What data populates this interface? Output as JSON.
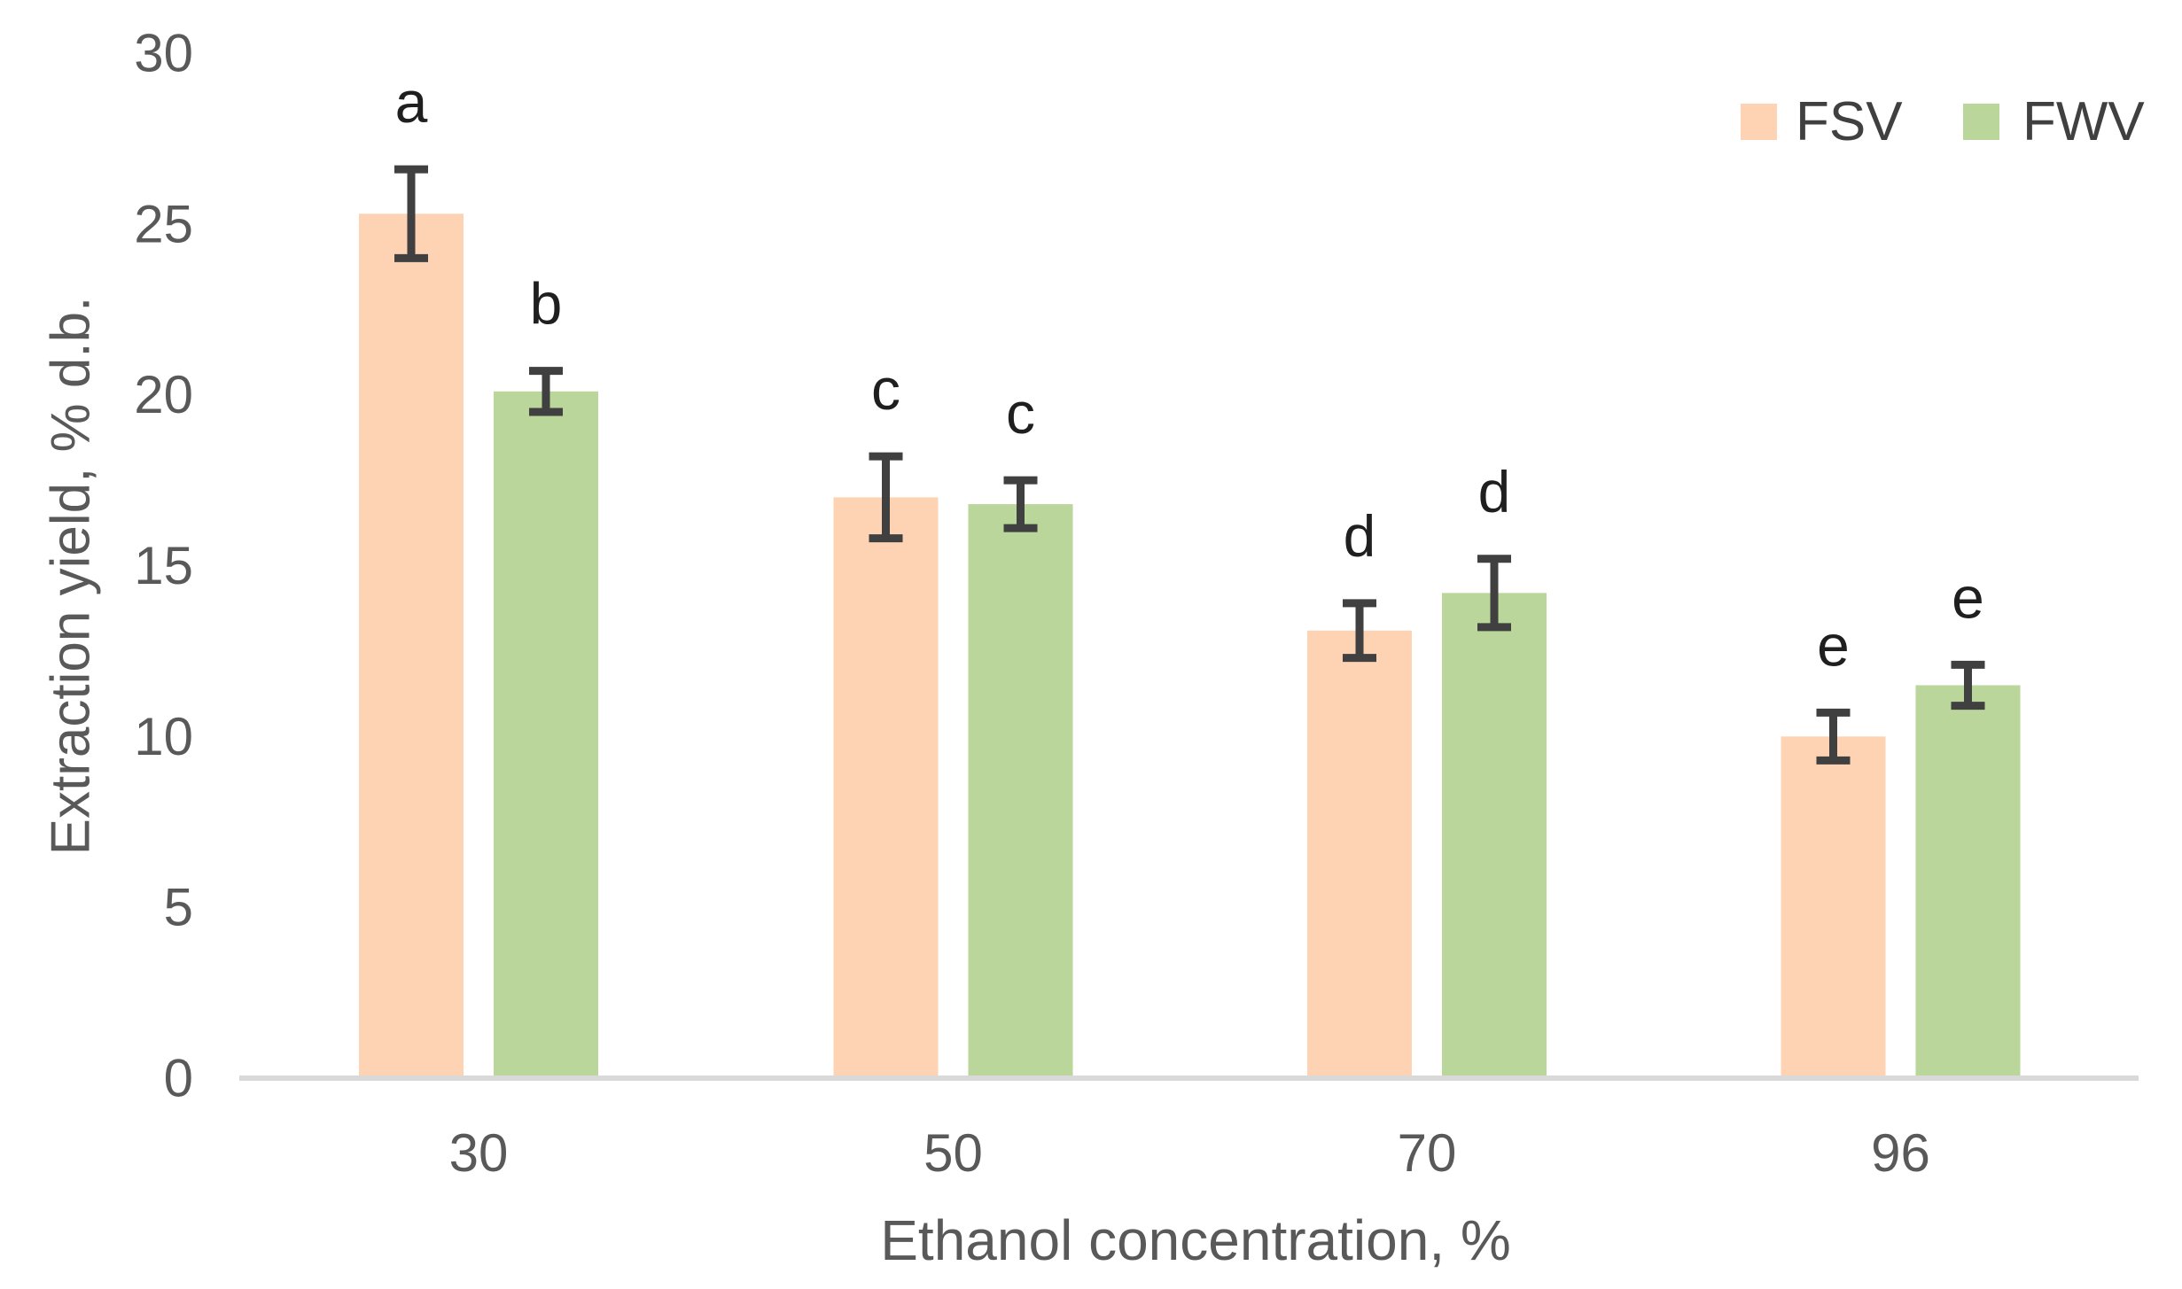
{
  "chart_data": {
    "type": "bar",
    "title": "",
    "xlabel": "Ethanol concentration, %",
    "ylabel": "Extraction yield, % d.b.",
    "categories": [
      "30",
      "50",
      "70",
      "96"
    ],
    "series": [
      {
        "name": "FSV",
        "color": "#FDD3B3",
        "values": [
          25.3,
          17.0,
          13.1,
          10.0
        ],
        "errors": [
          1.3,
          1.2,
          0.8,
          0.7
        ],
        "letters": [
          "a",
          "c",
          "d",
          "e"
        ]
      },
      {
        "name": "FWV",
        "color": "#BAD69A",
        "values": [
          20.1,
          16.8,
          14.2,
          11.5
        ],
        "errors": [
          0.6,
          0.7,
          1.0,
          0.6
        ],
        "letters": [
          "b",
          "c",
          "d",
          "e"
        ]
      }
    ],
    "ylim": [
      0,
      30
    ],
    "yticks": [
      0,
      5,
      10,
      15,
      20,
      25,
      30
    ],
    "grid": false,
    "legend_position": "top-right",
    "colors": {
      "axis_line": "#D9D9D9",
      "tick_label": "#595959",
      "axis_title": "#595959",
      "error_bar": "#404040",
      "annotation": "#1f1f1f",
      "legend_text": "#404040",
      "background": "#ffffff"
    }
  }
}
